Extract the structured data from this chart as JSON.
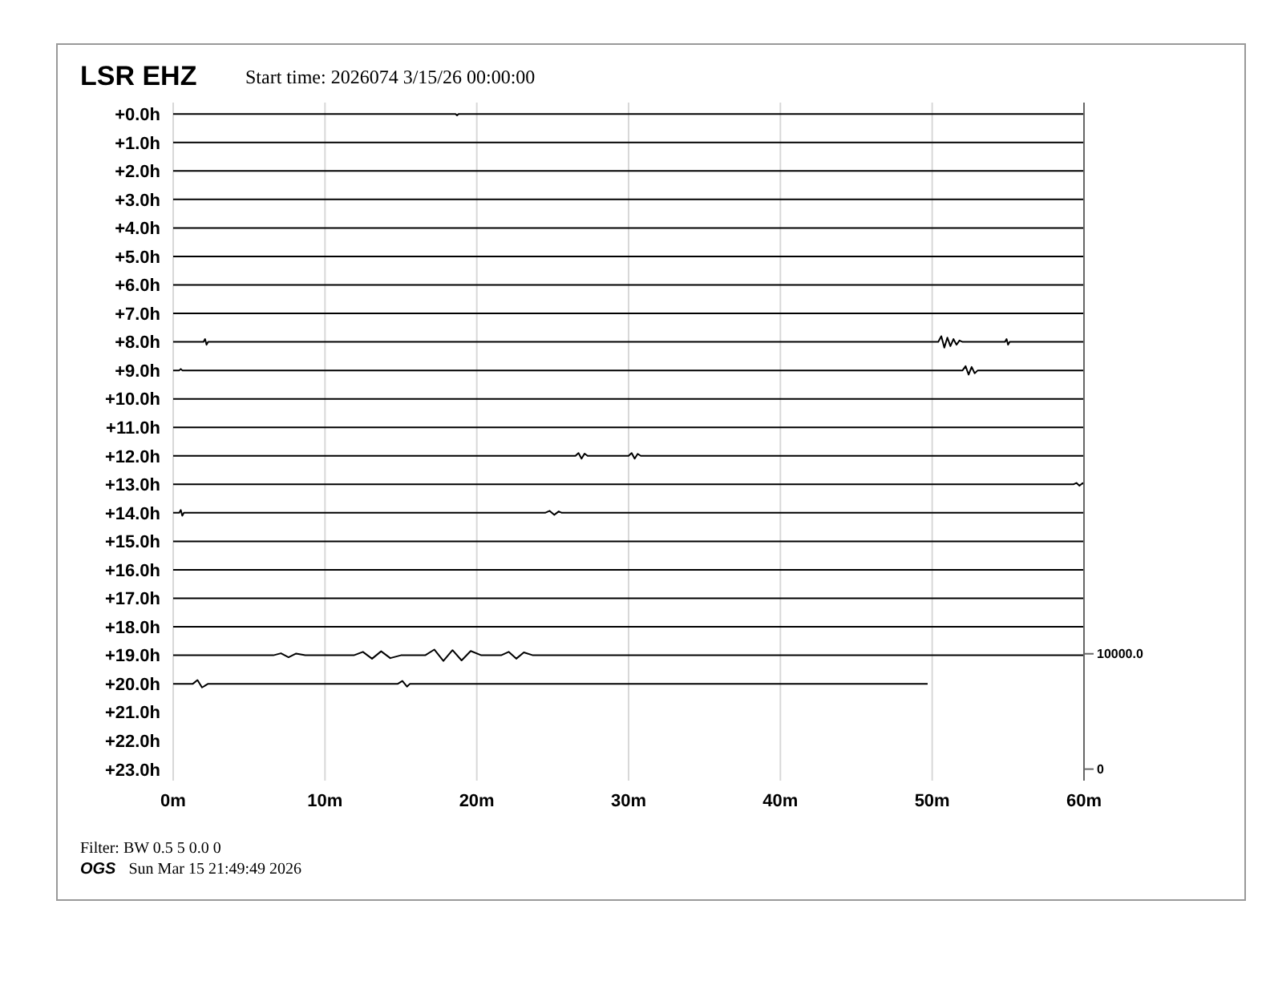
{
  "chart_data": {
    "type": "line",
    "title": "LSR EHZ",
    "subtitle": "Start time: 2026074  3/15/26 00:00:00",
    "annotations": [
      "Filter: BW 0.5 5 0.0 0",
      "OGS",
      "Sun Mar 15 21:49:49 2026"
    ],
    "xlim": [
      0,
      60
    ],
    "xticks": [
      {
        "value": 0,
        "label": "0m"
      },
      {
        "value": 10,
        "label": "10m"
      },
      {
        "value": 20,
        "label": "20m"
      },
      {
        "value": 30,
        "label": "30m"
      },
      {
        "value": 40,
        "label": "40m"
      },
      {
        "value": 50,
        "label": "50m"
      },
      {
        "value": 60,
        "label": "60m"
      }
    ],
    "ylim": [
      23.4,
      -0.4
    ],
    "yticks": [
      {
        "value": 0,
        "label": "+0.0h"
      },
      {
        "value": 1,
        "label": "+1.0h"
      },
      {
        "value": 2,
        "label": "+2.0h"
      },
      {
        "value": 3,
        "label": "+3.0h"
      },
      {
        "value": 4,
        "label": "+4.0h"
      },
      {
        "value": 5,
        "label": "+5.0h"
      },
      {
        "value": 6,
        "label": "+6.0h"
      },
      {
        "value": 7,
        "label": "+7.0h"
      },
      {
        "value": 8,
        "label": "+8.0h"
      },
      {
        "value": 9,
        "label": "+9.0h"
      },
      {
        "value": 10,
        "label": "+10.0h"
      },
      {
        "value": 11,
        "label": "+11.0h"
      },
      {
        "value": 12,
        "label": "+12.0h"
      },
      {
        "value": 13,
        "label": "+13.0h"
      },
      {
        "value": 14,
        "label": "+14.0h"
      },
      {
        "value": 15,
        "label": "+15.0h"
      },
      {
        "value": 16,
        "label": "+16.0h"
      },
      {
        "value": 17,
        "label": "+17.0h"
      },
      {
        "value": 18,
        "label": "+18.0h"
      },
      {
        "value": 19,
        "label": "+19.0h"
      },
      {
        "value": 20,
        "label": "+20.0h"
      },
      {
        "value": 21,
        "label": "+21.0h"
      },
      {
        "value": 22,
        "label": "+22.0h"
      },
      {
        "value": 23,
        "label": "+23.0h"
      }
    ],
    "y2lim": [
      -1000,
      57800
    ],
    "y2ticks": [
      0,
      {
        "value": 10000,
        "label": "10000.0"
      }
    ],
    "grid": "x",
    "legend": false,
    "marker": "none",
    "line_style": "solid",
    "series": [
      {
        "color": "#000000",
        "x": [
          0,
          18.6,
          18.7,
          18.8,
          60
        ],
        "values": [
          0,
          0,
          0.05,
          0,
          0
        ]
      },
      {
        "color": "#000000",
        "x": [
          0,
          60
        ],
        "values": [
          1,
          1
        ]
      },
      {
        "color": "#000000",
        "x": [
          0,
          60
        ],
        "values": [
          2,
          2
        ]
      },
      {
        "color": "#000000",
        "x": [
          0,
          60
        ],
        "values": [
          3,
          3
        ]
      },
      {
        "color": "#000000",
        "x": [
          0,
          60
        ],
        "values": [
          4,
          4
        ]
      },
      {
        "color": "#000000",
        "x": [
          0,
          60
        ],
        "values": [
          5,
          5
        ]
      },
      {
        "color": "#000000",
        "x": [
          0,
          60
        ],
        "values": [
          6,
          6
        ]
      },
      {
        "color": "#000000",
        "x": [
          0,
          60
        ],
        "values": [
          7,
          7
        ]
      },
      {
        "color": "#000000",
        "x": [
          0,
          2,
          2.1,
          2.2,
          2.3,
          50.4,
          50.6,
          50.8,
          51,
          51.2,
          51.4,
          51.6,
          51.8,
          52,
          54.8,
          54.9,
          55,
          55.1,
          60
        ],
        "values": [
          8,
          8,
          7.9,
          8.1,
          8,
          8,
          7.8,
          8.2,
          7.85,
          8.15,
          7.9,
          8.1,
          7.95,
          8,
          8,
          7.9,
          8.1,
          8,
          8
        ]
      },
      {
        "color": "#000000",
        "x": [
          0,
          0.4,
          0.5,
          0.6,
          52,
          52.2,
          52.4,
          52.6,
          52.8,
          53,
          60
        ],
        "values": [
          9,
          9,
          8.95,
          9,
          9,
          8.85,
          9.15,
          8.88,
          9.1,
          9,
          9
        ]
      },
      {
        "color": "#000000",
        "x": [
          0,
          60
        ],
        "values": [
          10,
          10
        ]
      },
      {
        "color": "#000000",
        "x": [
          0,
          60
        ],
        "values": [
          11,
          11
        ]
      },
      {
        "color": "#000000",
        "x": [
          0,
          26.5,
          26.7,
          26.9,
          27.1,
          27.3,
          30,
          30.2,
          30.4,
          30.6,
          30.8,
          60
        ],
        "values": [
          12,
          12,
          11.9,
          12.1,
          11.92,
          12,
          12,
          11.9,
          12.1,
          11.93,
          12,
          12
        ]
      },
      {
        "color": "#000000",
        "x": [
          0,
          59.3,
          59.5,
          59.7,
          59.9,
          60
        ],
        "values": [
          13,
          13,
          12.95,
          13.05,
          12.96,
          13
        ]
      },
      {
        "color": "#000000",
        "x": [
          0,
          0.4,
          0.5,
          0.6,
          0.7,
          24.5,
          24.8,
          25.1,
          25.4,
          25.6,
          60
        ],
        "values": [
          14,
          14,
          13.9,
          14.1,
          14,
          14,
          13.93,
          14.07,
          13.95,
          14,
          14
        ]
      },
      {
        "color": "#000000",
        "x": [
          0,
          60
        ],
        "values": [
          15,
          15
        ]
      },
      {
        "color": "#000000",
        "x": [
          0,
          60
        ],
        "values": [
          16,
          16
        ]
      },
      {
        "color": "#000000",
        "x": [
          0,
          60
        ],
        "values": [
          17,
          17
        ]
      },
      {
        "color": "#000000",
        "x": [
          0,
          60
        ],
        "values": [
          18,
          18
        ]
      },
      {
        "color": "#000000",
        "x": [
          0,
          6.6,
          7.1,
          7.6,
          8.1,
          8.7,
          11.9,
          12.5,
          13.1,
          13.7,
          14.3,
          15,
          16.6,
          17.2,
          17.8,
          18.4,
          19,
          19.6,
          20.3,
          21.6,
          22.1,
          22.6,
          23.1,
          23.7,
          60
        ],
        "values": [
          19,
          19,
          18.93,
          19.07,
          18.94,
          19,
          19,
          18.88,
          19.12,
          18.86,
          19.1,
          19,
          19,
          18.8,
          19.2,
          18.82,
          19.18,
          18.85,
          19,
          19,
          18.88,
          19.12,
          18.9,
          19,
          19
        ]
      },
      {
        "color": "#000000",
        "x": [
          0,
          1.3,
          1.6,
          1.9,
          2.3,
          14.8,
          15.1,
          15.4,
          15.6,
          49.7
        ],
        "values": [
          20,
          20,
          19.87,
          20.13,
          20,
          20,
          19.9,
          20.1,
          20,
          20
        ]
      }
    ]
  }
}
